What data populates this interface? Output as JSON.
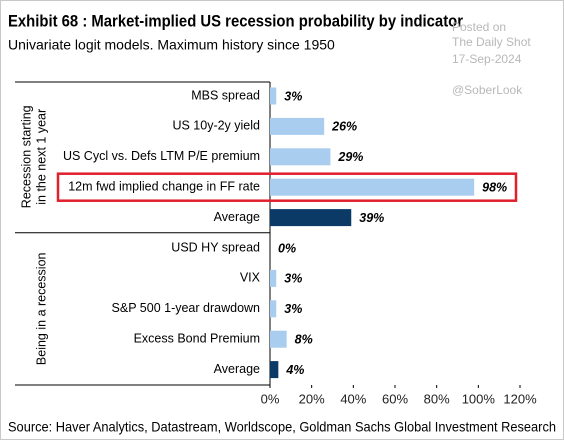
{
  "chart_data": {
    "type": "bar",
    "title": "Exhibit 68 : Market-implied US recession probability by indicator",
    "subtitle": "Univariate logit models. Maximum history since 1950",
    "watermark": [
      "Posted on",
      "The Daily Shot",
      "17-Sep-2024",
      "@SoberLook"
    ],
    "groups": [
      {
        "label_lines": [
          "Recession starting",
          "in the next 1 year"
        ],
        "categories": [
          "MBS spread",
          "US 10y-2y yield",
          "US Cycl vs. Defs LTM P/E premium",
          "12m fwd implied change in FF rate",
          "Average"
        ],
        "values": [
          3,
          26,
          29,
          98,
          39
        ],
        "value_labels": [
          "3%",
          "26%",
          "29%",
          "98%",
          "39%"
        ],
        "colors": [
          "#a9cdee",
          "#a9cdee",
          "#a9cdee",
          "#a9cdee",
          "#0b3a66"
        ],
        "highlight": 3
      },
      {
        "label_lines": [
          "Being in a recession"
        ],
        "categories": [
          "USD HY spread",
          "VIX",
          "S&P 500 1-year drawdown",
          "Excess Bond Premium",
          "Average"
        ],
        "values": [
          0,
          3,
          3,
          8,
          4
        ],
        "value_labels": [
          "0%",
          "3%",
          "3%",
          "8%",
          "4%"
        ],
        "colors": [
          "#a9cdee",
          "#a9cdee",
          "#a9cdee",
          "#a9cdee",
          "#0b3a66"
        ]
      }
    ],
    "highlight_color": "#e0202a",
    "xlim": [
      0,
      120
    ],
    "xticks": [
      {
        "value": 0,
        "label": "0%"
      },
      {
        "value": 20,
        "label": "20%"
      },
      {
        "value": 40,
        "label": "40%"
      },
      {
        "value": 60,
        "label": "60%"
      },
      {
        "value": 80,
        "label": "80%"
      },
      {
        "value": 100,
        "label": "100%"
      },
      {
        "value": 120,
        "label": "120%"
      }
    ],
    "source": "Source: Haver Analytics, Datastream, Worldscope, Goldman Sachs Global Investment Research"
  }
}
